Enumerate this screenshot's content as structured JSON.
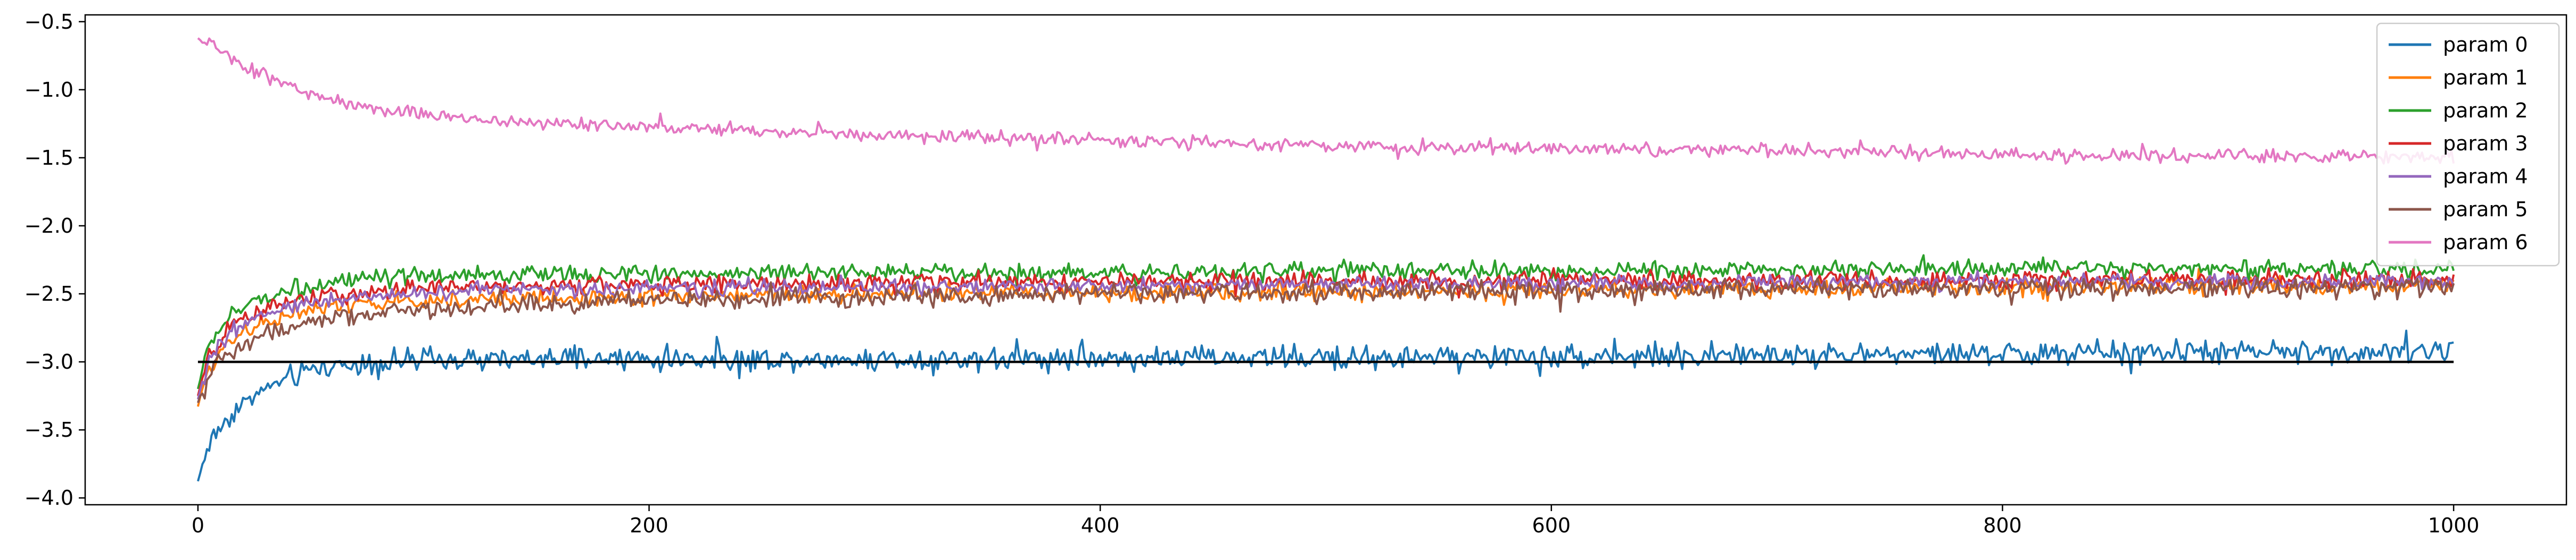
{
  "chart_data": {
    "type": "line",
    "title": "",
    "xlabel": "",
    "ylabel": "",
    "xlim": [
      -50,
      1050
    ],
    "ylim": [
      -4.05,
      -0.45
    ],
    "x_ticks": [
      0,
      200,
      400,
      600,
      800,
      1000
    ],
    "x_tick_labels": [
      "0",
      "200",
      "400",
      "600",
      "800",
      "1000"
    ],
    "y_ticks": [
      -0.5,
      -1.0,
      -1.5,
      -2.0,
      -2.5,
      -3.0,
      -3.5,
      -4.0
    ],
    "y_tick_labels": [
      "−0.5",
      "−1.0",
      "−1.5",
      "−2.0",
      "−2.5",
      "−3.0",
      "−3.5",
      "−4.0"
    ],
    "grid": false,
    "legend_position": "top-right",
    "reference_line": {
      "y": -3.0,
      "x_range": [
        0,
        1000
      ],
      "color": "#000000"
    },
    "series": [
      {
        "name": "param 0",
        "color": "#1f77b4",
        "x": [
          0,
          2,
          5,
          10,
          15,
          20,
          30,
          40,
          50,
          60,
          80,
          100,
          130,
          160,
          200,
          300,
          400,
          500,
          600,
          700,
          800,
          900,
          1000
        ],
        "y": [
          -3.88,
          -3.75,
          -3.6,
          -3.48,
          -3.38,
          -3.3,
          -3.2,
          -3.12,
          -3.06,
          -3.03,
          -3.0,
          -2.99,
          -2.99,
          -2.98,
          -2.98,
          -2.98,
          -2.97,
          -2.97,
          -2.96,
          -2.95,
          -2.94,
          -2.93,
          -2.92
        ],
        "noise": 0.06
      },
      {
        "name": "param 1",
        "color": "#ff7f0e",
        "x": [
          0,
          2,
          5,
          10,
          15,
          20,
          30,
          40,
          50,
          60,
          80,
          100,
          150,
          200,
          300,
          400,
          500,
          600,
          700,
          800,
          900,
          1000
        ],
        "y": [
          -3.33,
          -3.2,
          -3.05,
          -2.92,
          -2.83,
          -2.77,
          -2.7,
          -2.66,
          -2.62,
          -2.6,
          -2.57,
          -2.55,
          -2.53,
          -2.52,
          -2.5,
          -2.49,
          -2.49,
          -2.47,
          -2.46,
          -2.45,
          -2.44,
          -2.44
        ],
        "noise": 0.045
      },
      {
        "name": "param 2",
        "color": "#2ca02c",
        "x": [
          0,
          2,
          5,
          10,
          15,
          20,
          30,
          40,
          50,
          60,
          80,
          100,
          150,
          200,
          300,
          400,
          500,
          600,
          700,
          800,
          900,
          1000
        ],
        "y": [
          -3.2,
          -3.05,
          -2.88,
          -2.75,
          -2.66,
          -2.6,
          -2.52,
          -2.47,
          -2.44,
          -2.42,
          -2.39,
          -2.37,
          -2.36,
          -2.35,
          -2.34,
          -2.34,
          -2.33,
          -2.33,
          -2.32,
          -2.32,
          -2.32,
          -2.32
        ],
        "noise": 0.045
      },
      {
        "name": "param 3",
        "color": "#d62728",
        "x": [
          0,
          2,
          5,
          10,
          15,
          20,
          30,
          40,
          50,
          60,
          80,
          100,
          150,
          200,
          300,
          400,
          500,
          600,
          700,
          800,
          900,
          1000
        ],
        "y": [
          -3.25,
          -3.12,
          -2.97,
          -2.84,
          -2.75,
          -2.69,
          -2.61,
          -2.56,
          -2.53,
          -2.51,
          -2.48,
          -2.46,
          -2.44,
          -2.43,
          -2.42,
          -2.41,
          -2.41,
          -2.4,
          -2.4,
          -2.4,
          -2.39,
          -2.39
        ],
        "noise": 0.045
      },
      {
        "name": "param 4",
        "color": "#9467bd",
        "x": [
          0,
          2,
          5,
          10,
          15,
          20,
          30,
          40,
          50,
          60,
          80,
          100,
          150,
          200,
          300,
          400,
          500,
          600,
          700,
          800,
          900,
          1000
        ],
        "y": [
          -3.27,
          -3.15,
          -3.0,
          -2.88,
          -2.79,
          -2.73,
          -2.65,
          -2.6,
          -2.56,
          -2.54,
          -2.51,
          -2.49,
          -2.47,
          -2.46,
          -2.45,
          -2.44,
          -2.43,
          -2.42,
          -2.42,
          -2.41,
          -2.41,
          -2.41
        ],
        "noise": 0.04
      },
      {
        "name": "param 5",
        "color": "#8c564b",
        "x": [
          0,
          2,
          5,
          10,
          15,
          20,
          30,
          40,
          50,
          60,
          80,
          100,
          150,
          200,
          300,
          400,
          500,
          600,
          700,
          800,
          900,
          1000
        ],
        "y": [
          -3.3,
          -3.22,
          -3.1,
          -3.0,
          -2.93,
          -2.88,
          -2.8,
          -2.75,
          -2.71,
          -2.68,
          -2.64,
          -2.61,
          -2.57,
          -2.55,
          -2.52,
          -2.5,
          -2.49,
          -2.48,
          -2.47,
          -2.46,
          -2.46,
          -2.45
        ],
        "noise": 0.05
      },
      {
        "name": "param 6",
        "color": "#e377c2",
        "x": [
          0,
          3,
          5,
          10,
          20,
          30,
          40,
          50,
          60,
          70,
          80,
          100,
          130,
          160,
          200,
          250,
          300,
          400,
          500,
          600,
          700,
          800,
          900,
          1000
        ],
        "y": [
          -0.63,
          -0.66,
          -0.61,
          -0.72,
          -0.82,
          -0.9,
          -0.97,
          -1.03,
          -1.08,
          -1.12,
          -1.14,
          -1.18,
          -1.22,
          -1.25,
          -1.28,
          -1.31,
          -1.33,
          -1.37,
          -1.41,
          -1.43,
          -1.45,
          -1.47,
          -1.49,
          -1.5
        ],
        "noise": 0.035
      }
    ]
  }
}
